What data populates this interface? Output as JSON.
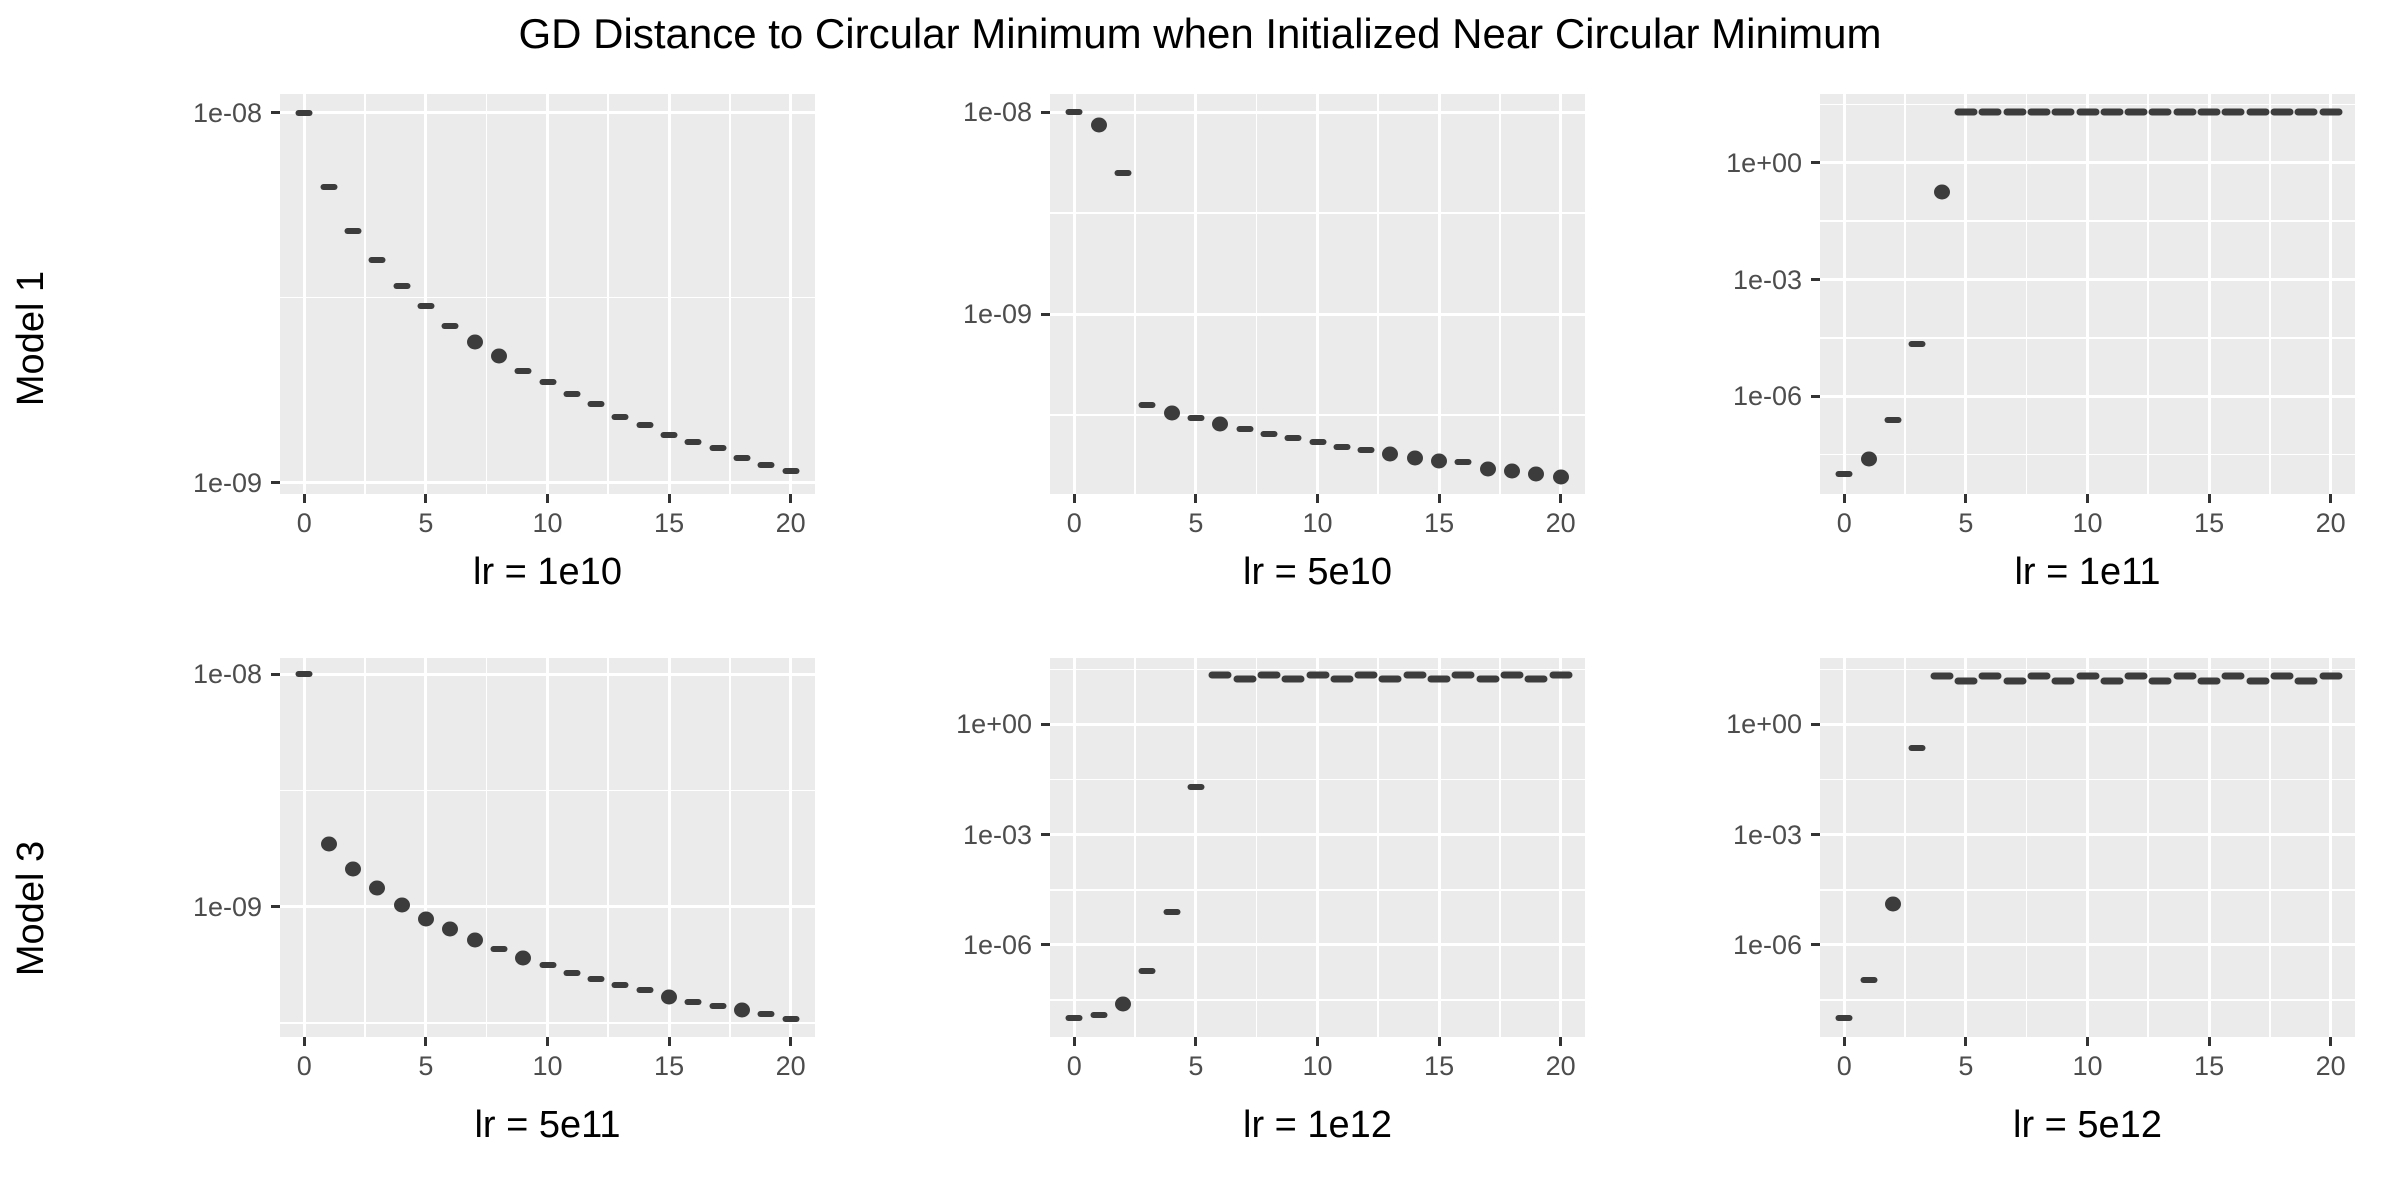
{
  "title": "GD Distance to Circular Minimum when Initialized Near Circular Minimum",
  "rows": [
    "Model 1",
    "Model 3"
  ],
  "colors": {
    "point": "#3C3C3C",
    "panel_background": "#EBEBEB",
    "gridline": "#FFFFFF",
    "tick_text": "#4D4D4D",
    "tick_mark": "#333333",
    "title_text": "#000000",
    "page_background": "#FFFFFF"
  },
  "chart_data": [
    {
      "type": "scatter",
      "row_label": "Model 1",
      "xlabel": "lr = 1e10",
      "x_ticks": [
        0,
        5,
        10,
        15,
        20
      ],
      "x_minor": [
        2.5,
        7.5,
        12.5,
        17.5
      ],
      "xlim": [
        -1,
        21
      ],
      "y_scale": "log10",
      "ylim_log10": [
        -7.95,
        -9.03
      ],
      "y_ticks": [
        {
          "label": "1e-08",
          "exp": -8
        },
        {
          "label": "1e-09",
          "exp": -9
        }
      ],
      "points": [
        {
          "x": 0,
          "y": 1e-08,
          "shape": "dash"
        },
        {
          "x": 1,
          "y": 6.3e-09,
          "shape": "dash"
        },
        {
          "x": 2,
          "y": 4.8e-09,
          "shape": "dash"
        },
        {
          "x": 3,
          "y": 4e-09,
          "shape": "dash"
        },
        {
          "x": 4,
          "y": 3.4e-09,
          "shape": "dash"
        },
        {
          "x": 5,
          "y": 3e-09,
          "shape": "dash"
        },
        {
          "x": 6,
          "y": 2.65e-09,
          "shape": "dash"
        },
        {
          "x": 7,
          "y": 2.4e-09,
          "shape": "dot"
        },
        {
          "x": 8,
          "y": 2.2e-09,
          "shape": "dot"
        },
        {
          "x": 9,
          "y": 2e-09,
          "shape": "dash"
        },
        {
          "x": 10,
          "y": 1.87e-09,
          "shape": "dash"
        },
        {
          "x": 11,
          "y": 1.74e-09,
          "shape": "dash"
        },
        {
          "x": 12,
          "y": 1.63e-09,
          "shape": "dash"
        },
        {
          "x": 13,
          "y": 1.51e-09,
          "shape": "dash"
        },
        {
          "x": 14,
          "y": 1.43e-09,
          "shape": "dash"
        },
        {
          "x": 15,
          "y": 1.35e-09,
          "shape": "dash"
        },
        {
          "x": 16,
          "y": 1.29e-09,
          "shape": "dash"
        },
        {
          "x": 17,
          "y": 1.24e-09,
          "shape": "dash"
        },
        {
          "x": 18,
          "y": 1.17e-09,
          "shape": "dash"
        },
        {
          "x": 19,
          "y": 1.12e-09,
          "shape": "dash"
        },
        {
          "x": 20,
          "y": 1.08e-09,
          "shape": "dash"
        }
      ]
    },
    {
      "type": "scatter",
      "row_label": "Model 1",
      "xlabel": "lr = 5e10",
      "x_ticks": [
        0,
        5,
        10,
        15,
        20
      ],
      "x_minor": [
        2.5,
        7.5,
        12.5,
        17.5
      ],
      "xlim": [
        -1,
        21
      ],
      "y_scale": "log10",
      "ylim_log10": [
        -7.91,
        -9.89
      ],
      "y_ticks": [
        {
          "label": "1e-08",
          "exp": -8
        },
        {
          "label": "1e-09",
          "exp": -9
        }
      ],
      "points": [
        {
          "x": 0,
          "y": 1e-08,
          "shape": "dash"
        },
        {
          "x": 1,
          "y": 8.6e-09,
          "shape": "dot"
        },
        {
          "x": 2,
          "y": 5e-09,
          "shape": "dash"
        },
        {
          "x": 3,
          "y": 3.55e-10,
          "shape": "dash"
        },
        {
          "x": 4,
          "y": 3.25e-10,
          "shape": "dot"
        },
        {
          "x": 5,
          "y": 3.05e-10,
          "shape": "dash"
        },
        {
          "x": 6,
          "y": 2.85e-10,
          "shape": "dot"
        },
        {
          "x": 7,
          "y": 2.7e-10,
          "shape": "dash"
        },
        {
          "x": 8,
          "y": 2.56e-10,
          "shape": "dash"
        },
        {
          "x": 9,
          "y": 2.44e-10,
          "shape": "dash"
        },
        {
          "x": 10,
          "y": 2.33e-10,
          "shape": "dash"
        },
        {
          "x": 11,
          "y": 2.21e-10,
          "shape": "dash"
        },
        {
          "x": 12,
          "y": 2.13e-10,
          "shape": "dash"
        },
        {
          "x": 13,
          "y": 2.03e-10,
          "shape": "dot"
        },
        {
          "x": 14,
          "y": 1.94e-10,
          "shape": "dot"
        },
        {
          "x": 15,
          "y": 1.88e-10,
          "shape": "dot"
        },
        {
          "x": 16,
          "y": 1.85e-10,
          "shape": "dash"
        },
        {
          "x": 17,
          "y": 1.71e-10,
          "shape": "dot"
        },
        {
          "x": 18,
          "y": 1.67e-10,
          "shape": "dot"
        },
        {
          "x": 19,
          "y": 1.61e-10,
          "shape": "dot"
        },
        {
          "x": 20,
          "y": 1.57e-10,
          "shape": "dot"
        }
      ]
    },
    {
      "type": "scatter",
      "row_label": "Model 1",
      "xlabel": "lr = 1e11",
      "x_ticks": [
        0,
        5,
        10,
        15,
        20
      ],
      "x_minor": [
        2.5,
        7.5,
        12.5,
        17.5
      ],
      "xlim": [
        -1,
        21
      ],
      "y_scale": "log10",
      "ylim_log10": [
        1.77,
        -8.51
      ],
      "y_ticks": [
        {
          "label": "1e+00",
          "exp": 0
        },
        {
          "label": "1e-03",
          "exp": -3
        },
        {
          "label": "1e-06",
          "exp": -6
        }
      ],
      "points": [
        {
          "x": 0,
          "y": 1e-08,
          "shape": "dash"
        },
        {
          "x": 1,
          "y": 2.5e-08,
          "shape": "dot"
        },
        {
          "x": 2,
          "y": 2.4e-07,
          "shape": "dash"
        },
        {
          "x": 3,
          "y": 2.2e-05,
          "shape": "dash"
        },
        {
          "x": 4,
          "y": 0.18,
          "shape": "dot"
        },
        {
          "x": 5,
          "y": 20,
          "shape": "dash2"
        },
        {
          "x": 6,
          "y": 20,
          "shape": "dash2"
        },
        {
          "x": 7,
          "y": 20,
          "shape": "dash2"
        },
        {
          "x": 8,
          "y": 20,
          "shape": "dash2"
        },
        {
          "x": 9,
          "y": 20,
          "shape": "dash2"
        },
        {
          "x": 10,
          "y": 20,
          "shape": "dash2"
        },
        {
          "x": 11,
          "y": 20,
          "shape": "dash2"
        },
        {
          "x": 12,
          "y": 20,
          "shape": "dash2"
        },
        {
          "x": 13,
          "y": 20,
          "shape": "dash2"
        },
        {
          "x": 14,
          "y": 20,
          "shape": "dash2"
        },
        {
          "x": 15,
          "y": 20,
          "shape": "dash2"
        },
        {
          "x": 16,
          "y": 20,
          "shape": "dash2"
        },
        {
          "x": 17,
          "y": 20,
          "shape": "dash2"
        },
        {
          "x": 18,
          "y": 20,
          "shape": "dash2"
        },
        {
          "x": 19,
          "y": 20,
          "shape": "dash2"
        },
        {
          "x": 20,
          "y": 20,
          "shape": "dash2"
        }
      ]
    },
    {
      "type": "scatter",
      "row_label": "Model 3",
      "xlabel": "lr = 5e11",
      "x_ticks": [
        0,
        5,
        10,
        15,
        20
      ],
      "x_minor": [
        2.5,
        7.5,
        12.5,
        17.5
      ],
      "xlim": [
        -1,
        21
      ],
      "y_scale": "log10",
      "ylim_log10": [
        -7.93,
        -9.56
      ],
      "y_ticks": [
        {
          "label": "1e-08",
          "exp": -8
        },
        {
          "label": "1e-09",
          "exp": -9
        }
      ],
      "points": [
        {
          "x": 0,
          "y": 1e-08,
          "shape": "dash"
        },
        {
          "x": 1,
          "y": 1.86e-09,
          "shape": "dot"
        },
        {
          "x": 2,
          "y": 1.45e-09,
          "shape": "dot"
        },
        {
          "x": 3,
          "y": 1.21e-09,
          "shape": "dot"
        },
        {
          "x": 4,
          "y": 1.02e-09,
          "shape": "dot"
        },
        {
          "x": 5,
          "y": 8.9e-10,
          "shape": "dot"
        },
        {
          "x": 6,
          "y": 8e-10,
          "shape": "dot"
        },
        {
          "x": 7,
          "y": 7.2e-10,
          "shape": "dot"
        },
        {
          "x": 8,
          "y": 6.6e-10,
          "shape": "dash"
        },
        {
          "x": 9,
          "y": 6e-10,
          "shape": "dot"
        },
        {
          "x": 10,
          "y": 5.6e-10,
          "shape": "dash"
        },
        {
          "x": 11,
          "y": 5.2e-10,
          "shape": "dash"
        },
        {
          "x": 12,
          "y": 4.9e-10,
          "shape": "dash"
        },
        {
          "x": 13,
          "y": 4.6e-10,
          "shape": "dash"
        },
        {
          "x": 14,
          "y": 4.4e-10,
          "shape": "dash"
        },
        {
          "x": 15,
          "y": 4.1e-10,
          "shape": "dot"
        },
        {
          "x": 16,
          "y": 3.9e-10,
          "shape": "dash"
        },
        {
          "x": 17,
          "y": 3.75e-10,
          "shape": "dash"
        },
        {
          "x": 18,
          "y": 3.6e-10,
          "shape": "dot"
        },
        {
          "x": 19,
          "y": 3.45e-10,
          "shape": "dash"
        },
        {
          "x": 20,
          "y": 3.3e-10,
          "shape": "dash"
        }
      ]
    },
    {
      "type": "scatter",
      "row_label": "Model 3",
      "xlabel": "lr = 1e12",
      "x_ticks": [
        0,
        5,
        10,
        15,
        20
      ],
      "x_minor": [
        2.5,
        7.5,
        12.5,
        17.5
      ],
      "xlim": [
        -1,
        21
      ],
      "y_scale": "log10",
      "ylim_log10": [
        1.81,
        -8.51
      ],
      "y_ticks": [
        {
          "label": "1e+00",
          "exp": 0
        },
        {
          "label": "1e-03",
          "exp": -3
        },
        {
          "label": "1e-06",
          "exp": -6
        }
      ],
      "points": [
        {
          "x": 0,
          "y": 1e-08,
          "shape": "dash"
        },
        {
          "x": 1,
          "y": 1.2e-08,
          "shape": "dash"
        },
        {
          "x": 2,
          "y": 2.5e-08,
          "shape": "dot"
        },
        {
          "x": 3,
          "y": 1.9e-07,
          "shape": "dash"
        },
        {
          "x": 4,
          "y": 8e-06,
          "shape": "dash"
        },
        {
          "x": 5,
          "y": 0.02,
          "shape": "dash"
        },
        {
          "x": 6,
          "y": 22,
          "shape": "dash2"
        },
        {
          "x": 7,
          "y": 17,
          "shape": "dash2"
        },
        {
          "x": 8,
          "y": 22,
          "shape": "dash2"
        },
        {
          "x": 9,
          "y": 17,
          "shape": "dash2"
        },
        {
          "x": 10,
          "y": 22,
          "shape": "dash2"
        },
        {
          "x": 11,
          "y": 17,
          "shape": "dash2"
        },
        {
          "x": 12,
          "y": 22,
          "shape": "dash2"
        },
        {
          "x": 13,
          "y": 17,
          "shape": "dash2"
        },
        {
          "x": 14,
          "y": 22,
          "shape": "dash2"
        },
        {
          "x": 15,
          "y": 17,
          "shape": "dash2"
        },
        {
          "x": 16,
          "y": 22,
          "shape": "dash2"
        },
        {
          "x": 17,
          "y": 17,
          "shape": "dash2"
        },
        {
          "x": 18,
          "y": 22,
          "shape": "dash2"
        },
        {
          "x": 19,
          "y": 17,
          "shape": "dash2"
        },
        {
          "x": 20,
          "y": 22,
          "shape": "dash2"
        }
      ]
    },
    {
      "type": "scatter",
      "row_label": "Model 3",
      "xlabel": "lr = 5e12",
      "x_ticks": [
        0,
        5,
        10,
        15,
        20
      ],
      "x_minor": [
        2.5,
        7.5,
        12.5,
        17.5
      ],
      "xlim": [
        -1,
        21
      ],
      "y_scale": "log10",
      "ylim_log10": [
        1.81,
        -8.51
      ],
      "y_ticks": [
        {
          "label": "1e+00",
          "exp": 0
        },
        {
          "label": "1e-03",
          "exp": -3
        },
        {
          "label": "1e-06",
          "exp": -6
        }
      ],
      "points": [
        {
          "x": 0,
          "y": 1e-08,
          "shape": "dash"
        },
        {
          "x": 1,
          "y": 1.1e-07,
          "shape": "dash"
        },
        {
          "x": 2,
          "y": 1.3e-05,
          "shape": "dot"
        },
        {
          "x": 3,
          "y": 0.23,
          "shape": "dash"
        },
        {
          "x": 4,
          "y": 21,
          "shape": "dash2"
        },
        {
          "x": 5,
          "y": 15,
          "shape": "dash2"
        },
        {
          "x": 6,
          "y": 21,
          "shape": "dash2"
        },
        {
          "x": 7,
          "y": 15,
          "shape": "dash2"
        },
        {
          "x": 8,
          "y": 21,
          "shape": "dash2"
        },
        {
          "x": 9,
          "y": 15,
          "shape": "dash2"
        },
        {
          "x": 10,
          "y": 21,
          "shape": "dash2"
        },
        {
          "x": 11,
          "y": 15,
          "shape": "dash2"
        },
        {
          "x": 12,
          "y": 21,
          "shape": "dash2"
        },
        {
          "x": 13,
          "y": 15,
          "shape": "dash2"
        },
        {
          "x": 14,
          "y": 21,
          "shape": "dash2"
        },
        {
          "x": 15,
          "y": 15,
          "shape": "dash2"
        },
        {
          "x": 16,
          "y": 21,
          "shape": "dash2"
        },
        {
          "x": 17,
          "y": 15,
          "shape": "dash2"
        },
        {
          "x": 18,
          "y": 21,
          "shape": "dash2"
        },
        {
          "x": 19,
          "y": 15,
          "shape": "dash2"
        },
        {
          "x": 20,
          "y": 21,
          "shape": "dash2"
        }
      ]
    }
  ]
}
